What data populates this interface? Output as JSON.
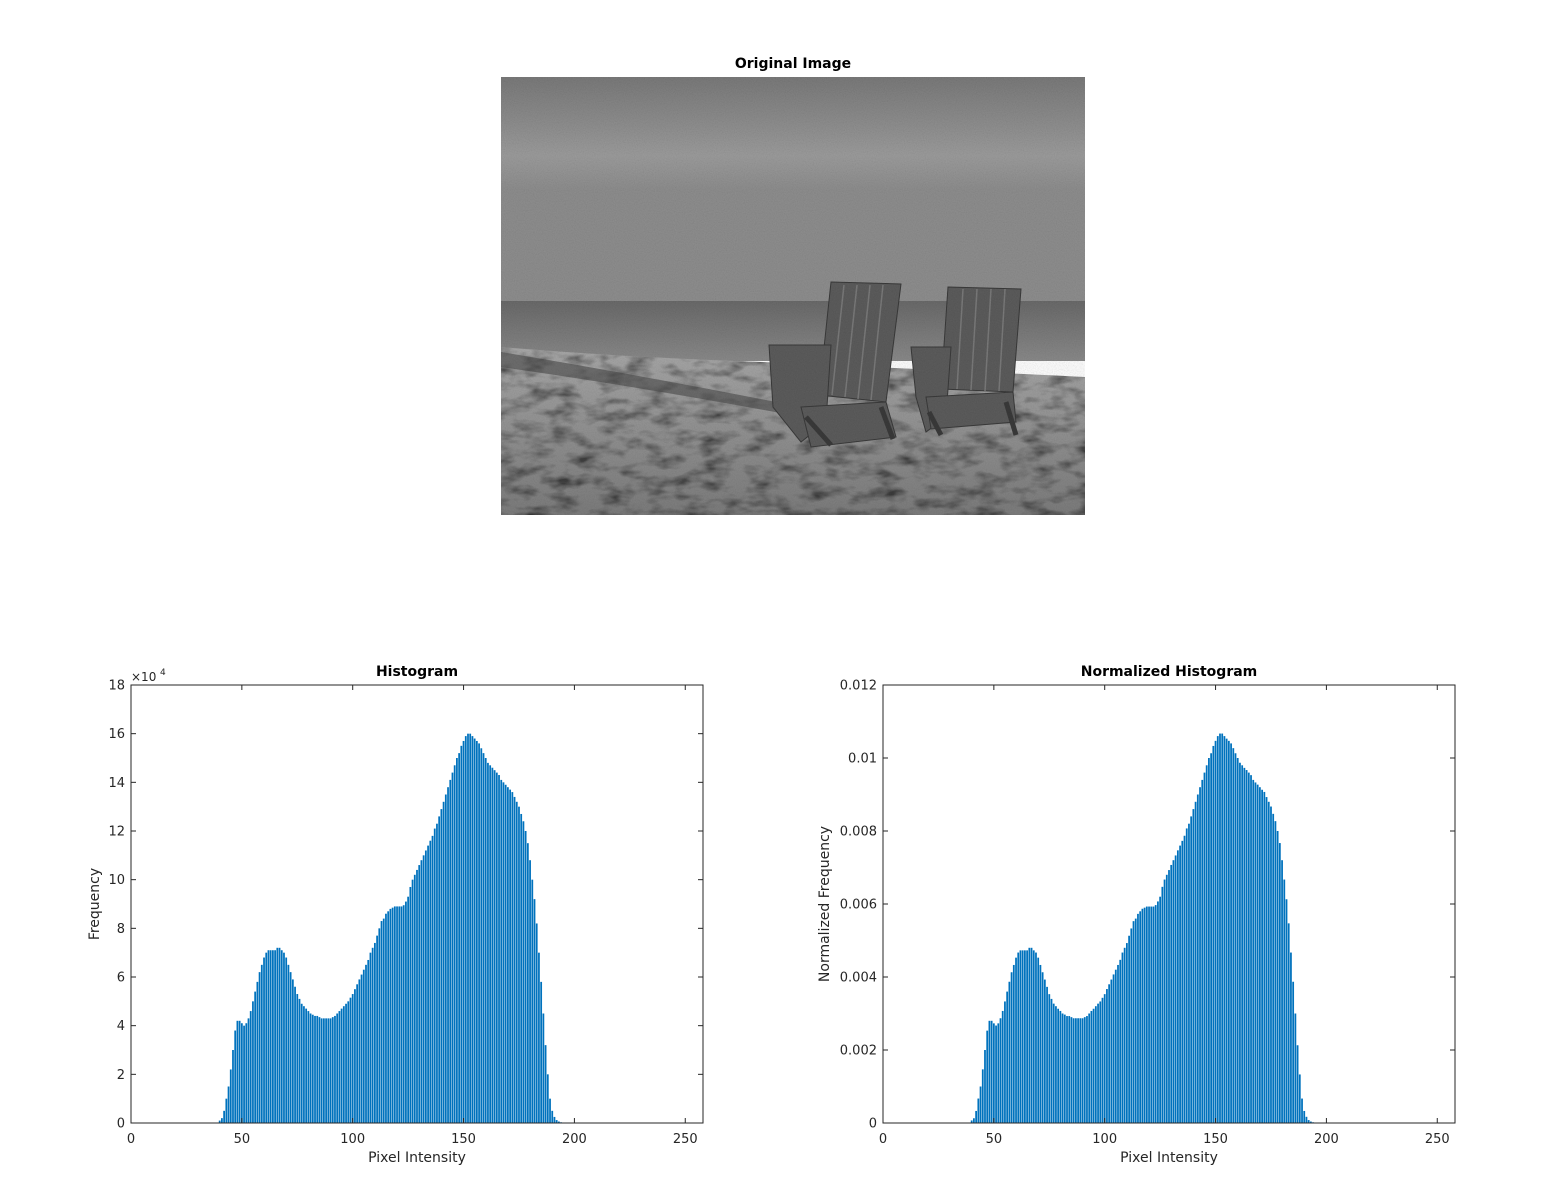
{
  "figure": {
    "image_title": "Original Image"
  },
  "chart_data": [
    {
      "type": "bar",
      "title": "Histogram",
      "xlabel": "Pixel Intensity",
      "ylabel": "Frequency",
      "xlim": [
        0,
        258
      ],
      "ylim": [
        0,
        180000
      ],
      "xticks": [
        0,
        50,
        100,
        150,
        200,
        250
      ],
      "xtick_labels": [
        "0",
        "50",
        "100",
        "150",
        "200",
        "250"
      ],
      "yticks": [
        0,
        20000,
        40000,
        60000,
        80000,
        100000,
        120000,
        140000,
        160000,
        180000
      ],
      "ytick_labels": [
        "0",
        "2",
        "4",
        "6",
        "8",
        "10",
        "12",
        "14",
        "16",
        "18"
      ],
      "exponent_base": "×10",
      "exponent_power": "4",
      "bar_color": "#0072BD",
      "x_start": 0,
      "values": [
        0,
        0,
        0,
        0,
        0,
        0,
        0,
        0,
        0,
        0,
        0,
        0,
        0,
        0,
        0,
        0,
        0,
        0,
        0,
        0,
        0,
        0,
        0,
        0,
        0,
        0,
        0,
        0,
        0,
        0,
        0,
        0,
        0,
        0,
        0,
        0,
        0,
        0,
        0,
        0,
        1000,
        2000,
        5000,
        10000,
        15000,
        22000,
        30000,
        38000,
        42000,
        42000,
        41000,
        40000,
        41000,
        43000,
        46000,
        50000,
        54000,
        58000,
        62000,
        65000,
        68000,
        70000,
        71000,
        71000,
        71000,
        71000,
        72000,
        72000,
        71000,
        70000,
        68000,
        65000,
        62000,
        59000,
        56000,
        53000,
        51000,
        49000,
        48000,
        47000,
        46000,
        45000,
        44500,
        44000,
        44000,
        43500,
        43000,
        43000,
        43000,
        43000,
        43000,
        43500,
        44000,
        45000,
        46000,
        47000,
        48000,
        49000,
        50000,
        51500,
        53000,
        55000,
        57000,
        59000,
        61000,
        63000,
        65000,
        67000,
        70000,
        72000,
        74000,
        77000,
        80000,
        83000,
        84000,
        86000,
        87000,
        88000,
        88500,
        89000,
        89000,
        89000,
        89000,
        89500,
        91000,
        93000,
        97000,
        100000,
        102000,
        104000,
        106000,
        108000,
        110000,
        112000,
        114000,
        116000,
        118000,
        121000,
        123000,
        126000,
        129000,
        132000,
        135000,
        138000,
        141000,
        144000,
        147000,
        150000,
        152000,
        155000,
        157000,
        159000,
        160000,
        160000,
        159000,
        158000,
        157000,
        156000,
        154000,
        152000,
        150000,
        148000,
        147000,
        146000,
        145000,
        144000,
        143000,
        141000,
        140000,
        139000,
        138000,
        137000,
        136000,
        134000,
        132000,
        130000,
        127000,
        124000,
        120000,
        115000,
        108000,
        100000,
        92000,
        82000,
        70000,
        58000,
        45000,
        32000,
        20000,
        10000,
        5000,
        2500,
        1200,
        600,
        300,
        150,
        0,
        0,
        0,
        0,
        0,
        0,
        0,
        0,
        0,
        0,
        0,
        0,
        0,
        0,
        0,
        0,
        0,
        0,
        0,
        0,
        0,
        0,
        0,
        0,
        0,
        0,
        0,
        0,
        0,
        0,
        0,
        0,
        0,
        0,
        0,
        0,
        0,
        0,
        0,
        0,
        0,
        0,
        0,
        0,
        0
      ]
    },
    {
      "type": "bar",
      "title": "Normalized Histogram",
      "xlabel": "Pixel Intensity",
      "ylabel": "Normalized Frequency",
      "xlim": [
        0,
        258
      ],
      "ylim": [
        0,
        0.012
      ],
      "xticks": [
        0,
        50,
        100,
        150,
        200,
        250
      ],
      "xtick_labels": [
        "0",
        "50",
        "100",
        "150",
        "200",
        "250"
      ],
      "yticks": [
        0,
        0.002,
        0.004,
        0.006,
        0.008,
        0.01,
        0.012
      ],
      "ytick_labels": [
        "0",
        "0.002",
        "0.004",
        "0.006",
        "0.008",
        "0.01",
        "0.012"
      ],
      "bar_color": "#0072BD",
      "x_start": 0,
      "values": [
        0,
        0,
        0,
        0,
        0,
        0,
        0,
        0,
        0,
        0,
        0,
        0,
        0,
        0,
        0,
        0,
        0,
        0,
        0,
        0,
        0,
        0,
        0,
        0,
        0,
        0,
        0,
        0,
        0,
        0,
        0,
        0,
        0,
        0,
        0,
        0,
        0,
        0,
        0,
        0,
        7e-05,
        0.00013,
        0.00033,
        0.00067,
        0.001,
        0.00147,
        0.002,
        0.00253,
        0.0028,
        0.0028,
        0.00273,
        0.00267,
        0.00273,
        0.00287,
        0.00307,
        0.00333,
        0.0036,
        0.00387,
        0.00413,
        0.00433,
        0.00453,
        0.00467,
        0.00473,
        0.00473,
        0.00473,
        0.00473,
        0.0048,
        0.0048,
        0.00473,
        0.00467,
        0.00453,
        0.00433,
        0.00413,
        0.00393,
        0.00373,
        0.00353,
        0.0034,
        0.00327,
        0.0032,
        0.00313,
        0.00307,
        0.003,
        0.00297,
        0.00293,
        0.00293,
        0.0029,
        0.00287,
        0.00287,
        0.00287,
        0.00287,
        0.00287,
        0.0029,
        0.00293,
        0.003,
        0.00307,
        0.00313,
        0.0032,
        0.00327,
        0.00333,
        0.00343,
        0.00353,
        0.00367,
        0.0038,
        0.00393,
        0.00407,
        0.0042,
        0.00433,
        0.00447,
        0.00467,
        0.0048,
        0.00493,
        0.00513,
        0.00533,
        0.00553,
        0.0056,
        0.00573,
        0.0058,
        0.00587,
        0.0059,
        0.00593,
        0.00593,
        0.00593,
        0.00593,
        0.00597,
        0.00607,
        0.0062,
        0.00647,
        0.00667,
        0.0068,
        0.00693,
        0.00707,
        0.0072,
        0.00733,
        0.00747,
        0.0076,
        0.00773,
        0.00787,
        0.00807,
        0.0082,
        0.0084,
        0.0086,
        0.0088,
        0.009,
        0.0092,
        0.0094,
        0.0096,
        0.0098,
        0.01,
        0.01013,
        0.01033,
        0.01047,
        0.0106,
        0.01067,
        0.01067,
        0.0106,
        0.01053,
        0.01047,
        0.0104,
        0.01027,
        0.01013,
        0.01,
        0.00987,
        0.0098,
        0.00973,
        0.00967,
        0.0096,
        0.00953,
        0.0094,
        0.00933,
        0.00927,
        0.0092,
        0.00913,
        0.00907,
        0.00893,
        0.0088,
        0.00867,
        0.00847,
        0.00827,
        0.008,
        0.00767,
        0.0072,
        0.00667,
        0.00613,
        0.00547,
        0.00467,
        0.00387,
        0.003,
        0.00213,
        0.00133,
        0.00067,
        0.00033,
        0.00017,
        8e-05,
        4e-05,
        2e-05,
        1e-05,
        0,
        0,
        0,
        0,
        0,
        0,
        0,
        0,
        0,
        0,
        0,
        0,
        0,
        0,
        0,
        0,
        0,
        0,
        0,
        0,
        0,
        0,
        0,
        0,
        0,
        0,
        0,
        0,
        0,
        0,
        0,
        0,
        0,
        0,
        0,
        0,
        0,
        0,
        0,
        0,
        0,
        0,
        0,
        0,
        0
      ]
    }
  ]
}
